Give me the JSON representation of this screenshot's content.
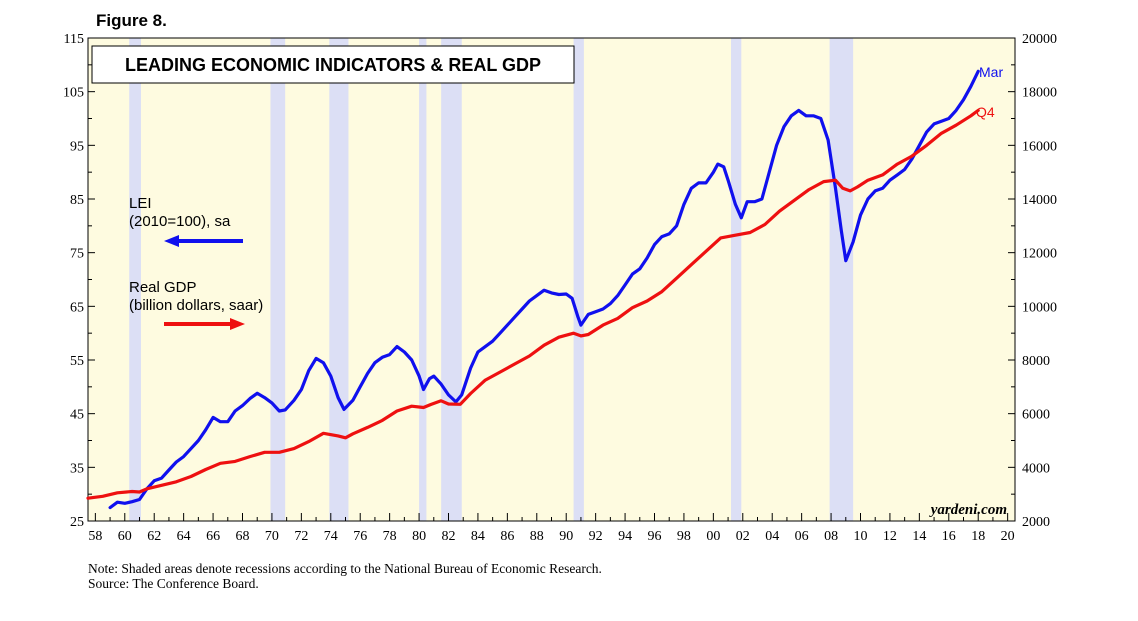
{
  "figure_label": "Figure 8.",
  "footnote": {
    "note": "Note: Shaded areas denote recessions according to the National Bureau of Economic Research.",
    "source": "Source: The Conference Board."
  },
  "colors": {
    "plot_background": "#fefbe0",
    "recession_band": "#dcdff5",
    "lei": "#1010ee",
    "gdp": "#ee1010"
  },
  "chart_data": {
    "type": "line",
    "title": "LEADING ECONOMIC INDICATORS & REAL GDP",
    "x_range": [
      1957.5,
      2020.5
    ],
    "x_ticks": [
      "58",
      "60",
      "62",
      "64",
      "66",
      "68",
      "70",
      "72",
      "74",
      "76",
      "78",
      "80",
      "82",
      "84",
      "86",
      "88",
      "90",
      "92",
      "94",
      "96",
      "98",
      "00",
      "02",
      "04",
      "06",
      "08",
      "10",
      "12",
      "14",
      "16",
      "18",
      "20"
    ],
    "x_tick_years": [
      1958,
      1960,
      1962,
      1964,
      1966,
      1968,
      1970,
      1972,
      1974,
      1976,
      1978,
      1980,
      1982,
      1984,
      1986,
      1988,
      1990,
      1992,
      1994,
      1996,
      1998,
      2000,
      2002,
      2004,
      2006,
      2008,
      2010,
      2012,
      2014,
      2016,
      2018,
      2020
    ],
    "y_left": {
      "range": [
        25,
        115
      ],
      "ticks": [
        25,
        35,
        45,
        55,
        65,
        75,
        85,
        95,
        105,
        115
      ]
    },
    "y_right": {
      "range": [
        2000,
        20000
      ],
      "ticks": [
        2000,
        4000,
        6000,
        8000,
        10000,
        12000,
        14000,
        16000,
        18000,
        20000
      ]
    },
    "recessions": [
      [
        1960.3,
        1961.1
      ],
      [
        1969.9,
        1970.9
      ],
      [
        1973.9,
        1975.2
      ],
      [
        1980.0,
        1980.5
      ],
      [
        1981.5,
        1982.9
      ],
      [
        1990.5,
        1991.2
      ],
      [
        2001.2,
        2001.9
      ],
      [
        2007.9,
        2009.5
      ]
    ],
    "series": [
      {
        "name": "LEI",
        "legend_lines": [
          "LEI",
          "(2010=100), sa"
        ],
        "axis": "left",
        "arrow": "left",
        "end_label": "Mar",
        "points": [
          [
            1959.0,
            27.5
          ],
          [
            1959.5,
            28.5
          ],
          [
            1960.0,
            28.3
          ],
          [
            1960.5,
            28.6
          ],
          [
            1961.0,
            29.0
          ],
          [
            1961.5,
            31.0
          ],
          [
            1962.0,
            32.5
          ],
          [
            1962.5,
            33.0
          ],
          [
            1963.0,
            34.5
          ],
          [
            1963.5,
            36.0
          ],
          [
            1964.0,
            37.0
          ],
          [
            1964.5,
            38.5
          ],
          [
            1965.0,
            40.0
          ],
          [
            1965.5,
            42.0
          ],
          [
            1966.0,
            44.3
          ],
          [
            1966.5,
            43.5
          ],
          [
            1967.0,
            43.5
          ],
          [
            1967.5,
            45.5
          ],
          [
            1968.0,
            46.5
          ],
          [
            1968.5,
            47.8
          ],
          [
            1969.0,
            48.8
          ],
          [
            1969.5,
            48.0
          ],
          [
            1970.0,
            47.0
          ],
          [
            1970.5,
            45.5
          ],
          [
            1970.9,
            45.7
          ],
          [
            1971.5,
            47.5
          ],
          [
            1972.0,
            49.5
          ],
          [
            1972.5,
            53.0
          ],
          [
            1973.0,
            55.3
          ],
          [
            1973.5,
            54.5
          ],
          [
            1974.0,
            52.0
          ],
          [
            1974.5,
            48.0
          ],
          [
            1974.9,
            45.8
          ],
          [
            1975.5,
            47.5
          ],
          [
            1976.0,
            50.0
          ],
          [
            1976.5,
            52.5
          ],
          [
            1977.0,
            54.5
          ],
          [
            1977.5,
            55.5
          ],
          [
            1978.0,
            56.0
          ],
          [
            1978.5,
            57.5
          ],
          [
            1979.0,
            56.5
          ],
          [
            1979.5,
            55.0
          ],
          [
            1980.0,
            52.0
          ],
          [
            1980.3,
            49.5
          ],
          [
            1980.7,
            51.5
          ],
          [
            1981.0,
            52.0
          ],
          [
            1981.5,
            50.5
          ],
          [
            1982.0,
            48.5
          ],
          [
            1982.5,
            47.2
          ],
          [
            1982.9,
            48.5
          ],
          [
            1983.5,
            53.5
          ],
          [
            1984.0,
            56.5
          ],
          [
            1984.5,
            57.5
          ],
          [
            1985.0,
            58.5
          ],
          [
            1985.5,
            60.0
          ],
          [
            1986.0,
            61.5
          ],
          [
            1986.5,
            63.0
          ],
          [
            1987.0,
            64.5
          ],
          [
            1987.5,
            66.0
          ],
          [
            1988.0,
            67.0
          ],
          [
            1988.5,
            68.0
          ],
          [
            1989.0,
            67.5
          ],
          [
            1989.5,
            67.2
          ],
          [
            1990.0,
            67.3
          ],
          [
            1990.4,
            66.5
          ],
          [
            1990.8,
            63.0
          ],
          [
            1991.0,
            61.5
          ],
          [
            1991.5,
            63.5
          ],
          [
            1992.0,
            64.0
          ],
          [
            1992.5,
            64.5
          ],
          [
            1993.0,
            65.5
          ],
          [
            1993.5,
            67.0
          ],
          [
            1994.0,
            69.0
          ],
          [
            1994.5,
            71.0
          ],
          [
            1995.0,
            72.0
          ],
          [
            1995.5,
            74.0
          ],
          [
            1996.0,
            76.5
          ],
          [
            1996.5,
            78.0
          ],
          [
            1997.0,
            78.5
          ],
          [
            1997.5,
            80.0
          ],
          [
            1998.0,
            84.0
          ],
          [
            1998.5,
            87.0
          ],
          [
            1999.0,
            88.0
          ],
          [
            1999.5,
            88.0
          ],
          [
            2000.0,
            90.0
          ],
          [
            2000.3,
            91.5
          ],
          [
            2000.7,
            91.0
          ],
          [
            2001.0,
            88.5
          ],
          [
            2001.5,
            84.0
          ],
          [
            2001.9,
            81.5
          ],
          [
            2002.3,
            84.5
          ],
          [
            2002.8,
            84.5
          ],
          [
            2003.3,
            85.0
          ],
          [
            2003.7,
            89.0
          ],
          [
            2004.3,
            95.0
          ],
          [
            2004.8,
            98.5
          ],
          [
            2005.3,
            100.5
          ],
          [
            2005.8,
            101.5
          ],
          [
            2006.3,
            100.5
          ],
          [
            2006.8,
            100.5
          ],
          [
            2007.3,
            100.0
          ],
          [
            2007.8,
            96.0
          ],
          [
            2008.3,
            87.0
          ],
          [
            2008.7,
            79.0
          ],
          [
            2009.0,
            73.5
          ],
          [
            2009.5,
            77.0
          ],
          [
            2010.0,
            82.0
          ],
          [
            2010.5,
            85.0
          ],
          [
            2011.0,
            86.5
          ],
          [
            2011.5,
            87.0
          ],
          [
            2012.0,
            88.5
          ],
          [
            2012.5,
            89.5
          ],
          [
            2013.0,
            90.5
          ],
          [
            2013.5,
            92.5
          ],
          [
            2014.0,
            95.0
          ],
          [
            2014.5,
            97.5
          ],
          [
            2015.0,
            99.0
          ],
          [
            2015.5,
            99.5
          ],
          [
            2016.0,
            100.0
          ],
          [
            2016.5,
            101.5
          ],
          [
            2017.0,
            103.5
          ],
          [
            2017.5,
            106.0
          ],
          [
            2018.0,
            108.8
          ]
        ]
      },
      {
        "name": "Real GDP",
        "legend_lines": [
          "Real GDP",
          "(billion dollars, saar)"
        ],
        "axis": "right",
        "arrow": "right",
        "end_label": "Q4",
        "points": [
          [
            1957.5,
            2850
          ],
          [
            1958.5,
            2920
          ],
          [
            1959.5,
            3050
          ],
          [
            1960.5,
            3100
          ],
          [
            1961.0,
            3080
          ],
          [
            1961.5,
            3200
          ],
          [
            1962.5,
            3330
          ],
          [
            1963.5,
            3460
          ],
          [
            1964.5,
            3660
          ],
          [
            1965.5,
            3920
          ],
          [
            1966.5,
            4150
          ],
          [
            1967.5,
            4220
          ],
          [
            1968.5,
            4400
          ],
          [
            1969.5,
            4560
          ],
          [
            1970.5,
            4560
          ],
          [
            1971.5,
            4700
          ],
          [
            1972.5,
            4960
          ],
          [
            1973.5,
            5270
          ],
          [
            1974.5,
            5170
          ],
          [
            1975.0,
            5100
          ],
          [
            1975.5,
            5250
          ],
          [
            1976.5,
            5490
          ],
          [
            1977.5,
            5750
          ],
          [
            1978.5,
            6100
          ],
          [
            1979.5,
            6280
          ],
          [
            1980.3,
            6230
          ],
          [
            1980.8,
            6340
          ],
          [
            1981.5,
            6480
          ],
          [
            1982.0,
            6360
          ],
          [
            1982.8,
            6350
          ],
          [
            1983.5,
            6750
          ],
          [
            1984.5,
            7250
          ],
          [
            1985.5,
            7550
          ],
          [
            1986.5,
            7850
          ],
          [
            1987.5,
            8150
          ],
          [
            1988.5,
            8550
          ],
          [
            1989.5,
            8850
          ],
          [
            1990.5,
            9000
          ],
          [
            1991.0,
            8900
          ],
          [
            1991.5,
            8950
          ],
          [
            1992.5,
            9300
          ],
          [
            1993.5,
            9550
          ],
          [
            1994.5,
            9950
          ],
          [
            1995.5,
            10200
          ],
          [
            1996.5,
            10550
          ],
          [
            1997.5,
            11050
          ],
          [
            1998.5,
            11550
          ],
          [
            1999.5,
            12050
          ],
          [
            2000.5,
            12550
          ],
          [
            2001.5,
            12650
          ],
          [
            2002.5,
            12750
          ],
          [
            2003.5,
            13050
          ],
          [
            2004.5,
            13550
          ],
          [
            2005.5,
            13950
          ],
          [
            2006.5,
            14350
          ],
          [
            2007.5,
            14650
          ],
          [
            2008.3,
            14700
          ],
          [
            2008.8,
            14400
          ],
          [
            2009.3,
            14300
          ],
          [
            2009.8,
            14450
          ],
          [
            2010.5,
            14700
          ],
          [
            2011.5,
            14900
          ],
          [
            2012.5,
            15300
          ],
          [
            2013.5,
            15600
          ],
          [
            2014.5,
            16000
          ],
          [
            2015.5,
            16450
          ],
          [
            2016.5,
            16750
          ],
          [
            2017.5,
            17100
          ],
          [
            2018.0,
            17300
          ]
        ]
      }
    ],
    "watermark": "yardeni.com"
  }
}
